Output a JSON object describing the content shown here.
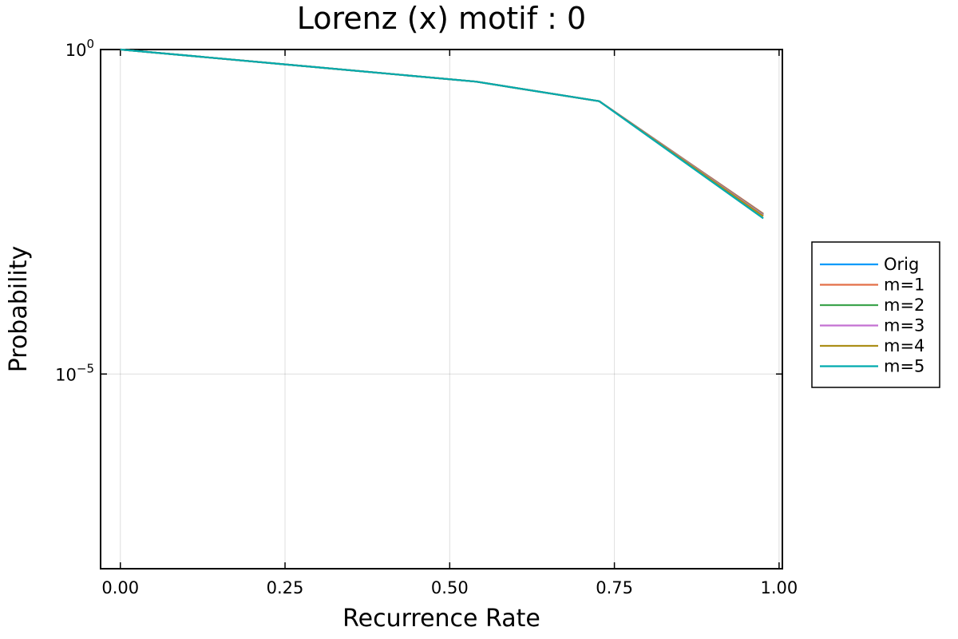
{
  "chart_data": {
    "type": "line",
    "title": "Lorenz (x) motif : 0",
    "xlabel": "Recurrence Rate",
    "ylabel": "Probability",
    "xlim": [
      -0.03,
      1.005
    ],
    "ylim": [
      1e-08,
      1
    ],
    "yscale": "log",
    "x_ticks": [
      0.0,
      0.25,
      0.5,
      0.75,
      1.0
    ],
    "x_tick_labels": [
      "0.00",
      "0.25",
      "0.50",
      "0.75",
      "1.00"
    ],
    "y_ticks": [
      {
        "value": 1,
        "base": "10",
        "exp": "0"
      },
      {
        "value": 1e-05,
        "base": "10",
        "exp": "−5"
      }
    ],
    "grid": true,
    "legend": "outside-right",
    "series": [
      {
        "name": "Orig",
        "color": "#009AFA",
        "x": [
          0.0,
          0.54,
          0.727,
          0.976
        ],
        "y": [
          1.0,
          0.32,
          0.16,
          0.00295
        ]
      },
      {
        "name": "m=1",
        "color": "#E36F47",
        "x": [
          0.0,
          0.54,
          0.727,
          0.976
        ],
        "y": [
          1.0,
          0.32,
          0.16,
          0.00295
        ]
      },
      {
        "name": "m=2",
        "color": "#3EA44E",
        "x": [
          0.0,
          0.54,
          0.727,
          0.976
        ],
        "y": [
          1.0,
          0.32,
          0.16,
          0.00285
        ]
      },
      {
        "name": "m=3",
        "color": "#C371D2",
        "x": [
          0.0,
          0.54,
          0.727,
          0.976
        ],
        "y": [
          1.0,
          0.32,
          0.16,
          0.0028
        ]
      },
      {
        "name": "m=4",
        "color": "#AC8E18",
        "x": [
          0.0,
          0.54,
          0.727,
          0.976
        ],
        "y": [
          1.0,
          0.32,
          0.16,
          0.0027
        ]
      },
      {
        "name": "m=5",
        "color": "#00AAAE",
        "x": [
          0.0,
          0.54,
          0.727,
          0.976
        ],
        "y": [
          1.0,
          0.32,
          0.16,
          0.0025
        ]
      }
    ]
  }
}
